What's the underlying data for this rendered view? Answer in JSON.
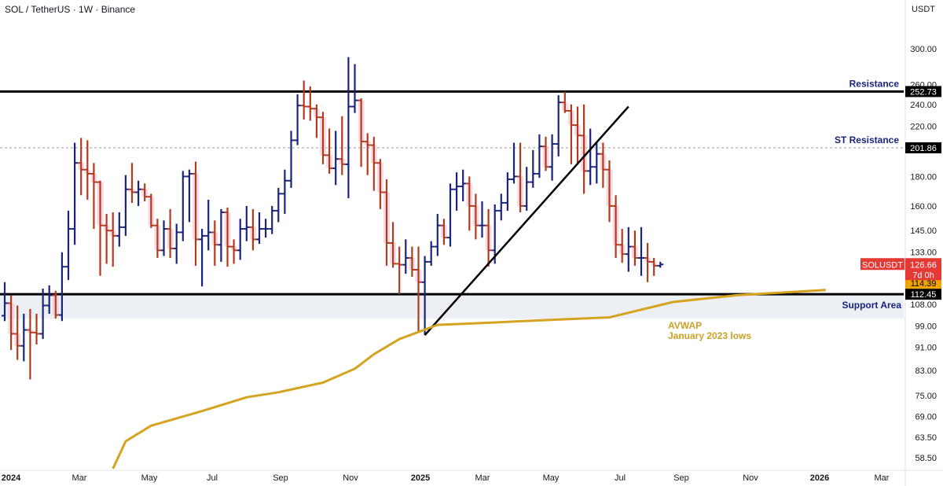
{
  "header": {
    "title": "SOL / TetherUS · 1W · Binance",
    "currency": "USDT"
  },
  "colors": {
    "up": "#1a237e",
    "down": "#b23a1e",
    "down_highlight": "#f8bbd0",
    "avwap": "#d4a320",
    "level_line": "#000000",
    "support_zone": "#eceff4",
    "trend_line": "#000000",
    "price_tag": "#e53935",
    "avwap_tag": "#f0a500"
  },
  "chart_data": {
    "type": "ohlc-bar",
    "timeframe": "1W",
    "y_scale": "log",
    "ylim": [
      56,
      340
    ],
    "y_ticks": [
      58.5,
      63.5,
      69.0,
      75.0,
      83.0,
      91.0,
      99.0,
      108.0,
      118.0,
      133.0,
      145.0,
      160.0,
      180.0,
      200.0,
      220.0,
      240.0,
      260.0,
      300.0
    ],
    "y_tick_labels": [
      "58.50",
      "63.50",
      "69.00",
      "75.00",
      "83.00",
      "91.00",
      "99.00",
      "108.00",
      "118.00",
      "133.00",
      "145.00",
      "160.00",
      "180.00",
      "200.00",
      "220.00",
      "240.00",
      "260.00",
      "300.00"
    ],
    "x_labels": [
      {
        "label": "2024",
        "bold": true
      },
      {
        "label": "Mar",
        "bold": false
      },
      {
        "label": "May",
        "bold": false
      },
      {
        "label": "Jul",
        "bold": false
      },
      {
        "label": "Sep",
        "bold": false
      },
      {
        "label": "Nov",
        "bold": false
      },
      {
        "label": "2025",
        "bold": true
      },
      {
        "label": "Mar",
        "bold": false
      },
      {
        "label": "May",
        "bold": false
      },
      {
        "label": "Jul",
        "bold": false
      },
      {
        "label": "Sep",
        "bold": false
      },
      {
        "label": "Nov",
        "bold": false
      },
      {
        "label": "2026",
        "bold": true
      },
      {
        "label": "Mar",
        "bold": false
      }
    ],
    "bars": [
      [
        103.2,
        118.0,
        101.0,
        108.5
      ],
      [
        108.5,
        112.0,
        90.0,
        96.0
      ],
      [
        96.0,
        107.5,
        86.5,
        91.5
      ],
      [
        91.5,
        104.0,
        86.0,
        97.5
      ],
      [
        97.5,
        106.0,
        80.0,
        96.5
      ],
      [
        96.5,
        104.0,
        92.0,
        96.0
      ],
      [
        96.0,
        115.0,
        94.0,
        107.5
      ],
      [
        107.5,
        116.5,
        104.0,
        112.0
      ],
      [
        112.0,
        114.0,
        102.0,
        103.5
      ],
      [
        103.5,
        133.0,
        101.0,
        125.5
      ],
      [
        125.5,
        157.0,
        119.0,
        146.0
      ],
      [
        146.0,
        206.0,
        137.0,
        190.0
      ],
      [
        190.0,
        210.0,
        167.0,
        185.0
      ],
      [
        185.0,
        208.0,
        164.0,
        182.0
      ],
      [
        182.0,
        190.0,
        146.0,
        176.0
      ],
      [
        176.0,
        177.0,
        121.0,
        148.0
      ],
      [
        148.0,
        155.0,
        127.0,
        145.0
      ],
      [
        145.0,
        156.0,
        125.5,
        142.0
      ],
      [
        142.0,
        156.0,
        136.0,
        147.0
      ],
      [
        147.0,
        181.0,
        142.0,
        171.0
      ],
      [
        171.0,
        190.0,
        162.0,
        169.0
      ],
      [
        169.0,
        177.0,
        160.0,
        171.0
      ],
      [
        171.0,
        175.0,
        163.0,
        166.0
      ],
      [
        166.0,
        168.0,
        146.5,
        148.0
      ],
      [
        148.0,
        152.0,
        130.0,
        134.0
      ],
      [
        134.0,
        151.0,
        131.0,
        146.0
      ],
      [
        146.0,
        158.0,
        130.0,
        135.0
      ],
      [
        135.0,
        149.0,
        127.0,
        144.0
      ],
      [
        144.0,
        184.0,
        139.0,
        180.0
      ],
      [
        180.0,
        185.0,
        150.0,
        182.0
      ],
      [
        182.0,
        191.0,
        126.0,
        140.0
      ],
      [
        140.0,
        146.0,
        116.0,
        142.0
      ],
      [
        142.0,
        164.0,
        134.0,
        144.0
      ],
      [
        144.0,
        151.0,
        126.0,
        137.0
      ],
      [
        137.0,
        158.0,
        128.0,
        156.0
      ],
      [
        156.0,
        159.0,
        125.5,
        136.0
      ],
      [
        136.0,
        140.0,
        127.0,
        134.0
      ],
      [
        134.0,
        152.0,
        129.0,
        146.0
      ],
      [
        146.0,
        160.0,
        139.0,
        147.0
      ],
      [
        147.0,
        158.0,
        134.0,
        140.0
      ],
      [
        140.0,
        156.0,
        137.5,
        146.0
      ],
      [
        146.0,
        152.0,
        141.0,
        146.0
      ],
      [
        146.0,
        160.0,
        143.0,
        157.0
      ],
      [
        157.0,
        172.0,
        150.0,
        168.0
      ],
      [
        168.0,
        185.0,
        155.0,
        177.0
      ],
      [
        177.0,
        216.0,
        172.0,
        208.0
      ],
      [
        208.0,
        250.0,
        204.0,
        239.0
      ],
      [
        239.0,
        264.0,
        226.0,
        238.0
      ],
      [
        238.0,
        258.0,
        225.0,
        236.0
      ],
      [
        236.0,
        240.0,
        210.0,
        228.0
      ],
      [
        228.0,
        233.0,
        189.0,
        196.0
      ],
      [
        196.0,
        218.0,
        182.0,
        186.0
      ],
      [
        186.0,
        216.0,
        174.0,
        193.0
      ],
      [
        193.0,
        229.0,
        181.0,
        189.0
      ],
      [
        189.0,
        290.0,
        165.0,
        238.0
      ],
      [
        238.0,
        282.0,
        232.0,
        244.0
      ],
      [
        244.0,
        246.0,
        187.0,
        207.0
      ],
      [
        207.0,
        214.0,
        181.0,
        204.0
      ],
      [
        204.0,
        211.0,
        170.0,
        190.0
      ],
      [
        190.0,
        193.0,
        158.0,
        169.0
      ],
      [
        169.0,
        178.0,
        126.0,
        138.0
      ],
      [
        138.0,
        150.0,
        125.0,
        127.0
      ],
      [
        127.0,
        136.0,
        112.5,
        126.5
      ],
      [
        126.5,
        140.0,
        122.0,
        130.0
      ],
      [
        130.0,
        136.0,
        120.5,
        124.0
      ],
      [
        124.0,
        136.0,
        97.0,
        118.0
      ],
      [
        118.0,
        131.0,
        95.5,
        128.0
      ],
      [
        128.0,
        139.0,
        126.0,
        136.0
      ],
      [
        136.0,
        155.0,
        131.0,
        148.0
      ],
      [
        148.0,
        152.0,
        137.0,
        141.0
      ],
      [
        141.0,
        175.0,
        136.0,
        171.0
      ],
      [
        171.0,
        183.0,
        157.0,
        173.0
      ],
      [
        173.0,
        185.0,
        163.0,
        175.0
      ],
      [
        175.0,
        180.0,
        145.0,
        160.0
      ],
      [
        160.0,
        168.0,
        140.0,
        148.0
      ],
      [
        148.0,
        163.0,
        141.0,
        148.0
      ],
      [
        148.0,
        158.0,
        125.5,
        134.0
      ],
      [
        134.0,
        161.0,
        127.0,
        157.0
      ],
      [
        157.0,
        168.0,
        151.0,
        162.0
      ],
      [
        162.0,
        183.0,
        157.0,
        178.0
      ],
      [
        178.0,
        206.0,
        175.0,
        180.0
      ],
      [
        180.0,
        206.0,
        156.0,
        160.0
      ],
      [
        160.0,
        187.0,
        157.0,
        176.0
      ],
      [
        176.0,
        200.0,
        172.0,
        182.0
      ],
      [
        182.0,
        213.0,
        179.0,
        203.0
      ],
      [
        203.0,
        211.0,
        184.0,
        187.0
      ],
      [
        187.0,
        213.0,
        177.0,
        205.0
      ],
      [
        205.0,
        249.0,
        195.0,
        242.0
      ],
      [
        242.0,
        252.5,
        232.0,
        234.0
      ],
      [
        234.0,
        240.0,
        189.0,
        221.0
      ],
      [
        221.0,
        238.0,
        190.0,
        212.0
      ],
      [
        212.0,
        240.0,
        168.0,
        184.0
      ],
      [
        184.0,
        218.0,
        174.0,
        187.0
      ],
      [
        187.0,
        207.0,
        175.0,
        197.0
      ],
      [
        197.0,
        206.0,
        172.0,
        185.0
      ],
      [
        185.0,
        192.0,
        150.0,
        160.0
      ],
      [
        160.0,
        167.0,
        130.0,
        137.0
      ],
      [
        137.0,
        146.0,
        127.5,
        132.0
      ],
      [
        132.0,
        147.0,
        123.0,
        136.0
      ],
      [
        136.0,
        145.0,
        126.0,
        130.0
      ],
      [
        130.0,
        147.0,
        121.0,
        130.0
      ],
      [
        130.0,
        138.0,
        118.0,
        128.0
      ],
      [
        128.0,
        130.0,
        121.0,
        126.0
      ],
      [
        126.0,
        128.0,
        125.0,
        126.66
      ]
    ],
    "levels": [
      {
        "name": "Resistance",
        "price": 252.73
      },
      {
        "name": "ST Resistance",
        "price": 201.86
      },
      {
        "name": "Support Area",
        "price": 112.45
      }
    ],
    "support_zone": [
      102.0,
      112.45
    ],
    "trendline": [
      [
        66,
        95.5
      ],
      [
        98,
        238.0
      ]
    ],
    "avwap": {
      "name": "AVWAP",
      "subtitle": "January 2023 lows",
      "points": [
        [
          17,
          56.0
        ],
        [
          19,
          62.5
        ],
        [
          23,
          66.5
        ],
        [
          31,
          70.5
        ],
        [
          38,
          74.5
        ],
        [
          43,
          76.0
        ],
        [
          50,
          79.0
        ],
        [
          55,
          83.5
        ],
        [
          58,
          88.5
        ],
        [
          62,
          94.0
        ],
        [
          68,
          99.5
        ],
        [
          75,
          100.2
        ],
        [
          85,
          101.4
        ],
        [
          95,
          102.5
        ],
        [
          105,
          109.0
        ],
        [
          115,
          112.0
        ],
        [
          129,
          114.39
        ]
      ]
    },
    "price_tags": {
      "resistance": "252.73",
      "st_resistance": "201.86",
      "symbol": "SOLUSDT",
      "last_price": "126.66",
      "countdown": "7d 0h",
      "avwap_value": "114.39",
      "support_value": "112.45"
    }
  }
}
